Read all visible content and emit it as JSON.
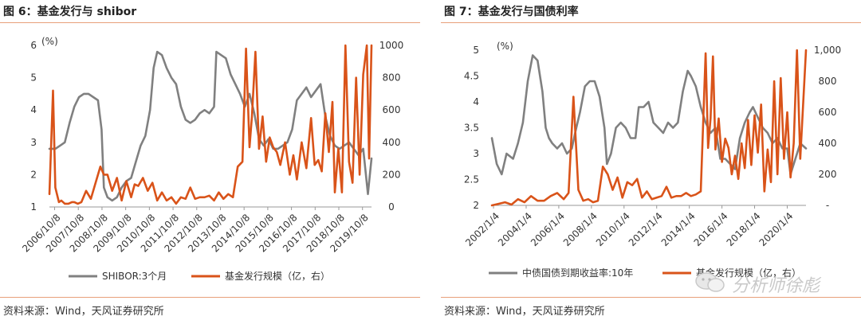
{
  "left": {
    "title": "图 6：基金发行与 shibor",
    "source": "资料来源：Wind，天风证券研究所"
  },
  "right": {
    "title": "图 7：基金发行与国债利率",
    "source": "资料来源：Wind，天风证券研究所"
  },
  "watermark": {
    "text": "分析师徐彪",
    "icon": "wechat-bubble-icon"
  },
  "colors": {
    "grey": "#808080",
    "orange": "#d95319",
    "rule": "#e8a07a"
  },
  "chart_data": [
    {
      "type": "line",
      "unit_label": "(%)",
      "ylim": [
        1,
        6
      ],
      "yticks": [
        "1",
        "2",
        "3",
        "4",
        "5",
        "6"
      ],
      "y2lim": [
        0,
        1000
      ],
      "y2ticks": [
        "0",
        "200",
        "400",
        "600",
        "800",
        "1000"
      ],
      "x_start": 2006.55,
      "x_end": 2020.15,
      "xticks": [
        "2006/10/8",
        "2007/10/8",
        "2008/10/8",
        "2009/10/8",
        "2010/10/8",
        "2011/10/8",
        "2012/10/8",
        "2013/10/8",
        "2014/10/8",
        "2015/10/8",
        "2016/10/8",
        "2017/10/8",
        "2018/10/8",
        "2019/10/8"
      ],
      "xtick_pos": [
        2006.77,
        2007.77,
        2008.77,
        2009.77,
        2010.77,
        2011.77,
        2012.77,
        2013.77,
        2014.77,
        2015.77,
        2016.77,
        2017.77,
        2018.77,
        2019.77
      ],
      "legend": [
        "SHIBOR:3个月",
        "基金发行规模（亿，右）"
      ],
      "series": [
        {
          "name": "SHIBOR:3个月",
          "axis": "left",
          "color": "#808080",
          "x": [
            2006.55,
            2006.8,
            2007.0,
            2007.2,
            2007.4,
            2007.6,
            2007.8,
            2008.0,
            2008.2,
            2008.4,
            2008.6,
            2008.75,
            2008.85,
            2009.0,
            2009.2,
            2009.4,
            2009.6,
            2009.8,
            2010.0,
            2010.2,
            2010.4,
            2010.6,
            2010.8,
            2010.95,
            2011.1,
            2011.3,
            2011.5,
            2011.7,
            2011.9,
            2012.1,
            2012.3,
            2012.5,
            2012.7,
            2012.9,
            2013.1,
            2013.3,
            2013.5,
            2013.6,
            2013.8,
            2014.0,
            2014.2,
            2014.4,
            2014.6,
            2014.8,
            2015.0,
            2015.2,
            2015.4,
            2015.6,
            2015.8,
            2016.0,
            2016.2,
            2016.4,
            2016.6,
            2016.8,
            2017.0,
            2017.2,
            2017.4,
            2017.6,
            2017.8,
            2018.0,
            2018.2,
            2018.4,
            2018.6,
            2018.8,
            2019.0,
            2019.2,
            2019.4,
            2019.6,
            2019.8,
            2020.0,
            2020.15
          ],
          "y": [
            2.8,
            2.8,
            2.9,
            3.0,
            3.6,
            4.1,
            4.4,
            4.5,
            4.5,
            4.4,
            4.3,
            3.4,
            1.6,
            1.3,
            1.2,
            1.3,
            1.6,
            1.8,
            1.9,
            2.4,
            2.9,
            3.2,
            4.0,
            5.3,
            5.8,
            5.7,
            5.3,
            5.0,
            4.8,
            4.1,
            3.7,
            3.6,
            3.7,
            3.9,
            4.0,
            3.9,
            4.1,
            5.8,
            5.7,
            5.6,
            5.1,
            4.8,
            4.5,
            4.1,
            4.5,
            3.9,
            3.1,
            2.9,
            3.1,
            2.8,
            2.8,
            2.9,
            3.0,
            3.4,
            4.3,
            4.5,
            4.7,
            4.4,
            4.6,
            4.8,
            3.8,
            3.2,
            2.9,
            2.8,
            2.9,
            3.0,
            2.8,
            2.6,
            2.8,
            1.4,
            2.5
          ]
        },
        {
          "name": "基金发行规模（亿，右）",
          "axis": "right",
          "color": "#d95319",
          "x": [
            2006.55,
            2006.7,
            2006.8,
            2006.95,
            2007.05,
            2007.2,
            2007.35,
            2007.5,
            2007.6,
            2007.75,
            2007.9,
            2008.1,
            2008.3,
            2008.5,
            2008.7,
            2008.85,
            2009.0,
            2009.2,
            2009.4,
            2009.6,
            2009.8,
            2010.0,
            2010.15,
            2010.3,
            2010.5,
            2010.7,
            2010.9,
            2011.1,
            2011.3,
            2011.5,
            2011.7,
            2011.9,
            2012.1,
            2012.3,
            2012.5,
            2012.7,
            2012.9,
            2013.1,
            2013.3,
            2013.5,
            2013.7,
            2013.9,
            2014.1,
            2014.3,
            2014.5,
            2014.7,
            2014.85,
            2015.0,
            2015.1,
            2015.25,
            2015.4,
            2015.55,
            2015.7,
            2015.85,
            2016.0,
            2016.15,
            2016.3,
            2016.5,
            2016.7,
            2016.85,
            2017.0,
            2017.2,
            2017.4,
            2017.6,
            2017.75,
            2017.9,
            2018.05,
            2018.2,
            2018.35,
            2018.5,
            2018.6,
            2018.75,
            2018.9,
            2019.05,
            2019.2,
            2019.35,
            2019.5,
            2019.65,
            2019.8,
            2019.95,
            2020.05,
            2020.15
          ],
          "y": [
            80,
            720,
            120,
            30,
            40,
            20,
            20,
            30,
            30,
            20,
            30,
            100,
            50,
            150,
            250,
            200,
            200,
            100,
            180,
            40,
            160,
            60,
            140,
            130,
            180,
            100,
            150,
            40,
            90,
            40,
            60,
            20,
            60,
            50,
            120,
            50,
            60,
            60,
            70,
            40,
            90,
            50,
            80,
            60,
            250,
            280,
            980,
            370,
            560,
            960,
            360,
            560,
            280,
            430,
            370,
            340,
            260,
            400,
            200,
            320,
            170,
            400,
            240,
            550,
            260,
            290,
            220,
            580,
            340,
            650,
            90,
            360,
            90,
            1000,
            280,
            150,
            800,
            200,
            820,
            1000,
            300,
            1000
          ]
        }
      ]
    },
    {
      "type": "line",
      "unit_label": "(%)",
      "ylim": [
        2,
        5
      ],
      "yticks": [
        "2",
        "2.5",
        "3",
        "3.5",
        "4",
        "4.5",
        "5"
      ],
      "y2lim": [
        0,
        1000
      ],
      "y2ticks": [
        "-",
        "200",
        "400",
        "600",
        "800",
        "1,000"
      ],
      "x_start": 2001.9,
      "x_end": 2021.15,
      "xticks": [
        "2002/1/4",
        "2004/1/4",
        "2006/1/4",
        "2008/1/4",
        "2010/1/4",
        "2012/1/4",
        "2014/1/4",
        "2016/1/4",
        "2018/1/4",
        "2020/1/4"
      ],
      "xtick_pos": [
        2002.0,
        2004.0,
        2006.0,
        2008.0,
        2010.0,
        2012.0,
        2014.0,
        2016.0,
        2018.0,
        2020.0
      ],
      "legend": [
        "中债国债到期收益率:10年",
        "基金发行规模（亿，右）"
      ],
      "series": [
        {
          "name": "中债国债到期收益率:10年",
          "axis": "left",
          "color": "#808080",
          "x": [
            2001.9,
            2002.2,
            2002.5,
            2002.8,
            2003.2,
            2003.5,
            2003.8,
            2004.1,
            2004.4,
            2004.7,
            2005.0,
            2005.2,
            2005.4,
            2005.6,
            2005.9,
            2006.2,
            2006.5,
            2006.8,
            2007.0,
            2007.3,
            2007.6,
            2007.9,
            2008.2,
            2008.5,
            2008.8,
            2008.95,
            2009.2,
            2009.5,
            2009.8,
            2010.1,
            2010.4,
            2010.7,
            2010.9,
            2011.2,
            2011.5,
            2011.8,
            2012.1,
            2012.4,
            2012.7,
            2013.0,
            2013.3,
            2013.6,
            2013.9,
            2014.1,
            2014.4,
            2014.7,
            2015.0,
            2015.3,
            2015.6,
            2015.9,
            2016.2,
            2016.5,
            2016.8,
            2017.1,
            2017.4,
            2017.7,
            2017.9,
            2018.2,
            2018.5,
            2018.8,
            2019.1,
            2019.4,
            2019.7,
            2020.0,
            2020.2,
            2020.5,
            2020.8,
            2021.15
          ],
          "y": [
            3.3,
            2.8,
            2.6,
            3.0,
            2.9,
            3.2,
            3.6,
            4.4,
            4.9,
            4.8,
            4.2,
            3.5,
            3.3,
            3.2,
            3.1,
            3.2,
            3.0,
            3.1,
            3.4,
            3.8,
            4.3,
            4.4,
            4.4,
            4.1,
            3.5,
            2.8,
            3.0,
            3.5,
            3.6,
            3.5,
            3.3,
            3.3,
            3.9,
            3.9,
            4.0,
            3.6,
            3.5,
            3.4,
            3.6,
            3.5,
            3.6,
            4.2,
            4.6,
            4.5,
            4.3,
            3.9,
            3.6,
            3.4,
            3.5,
            2.9,
            2.9,
            2.8,
            2.7,
            3.3,
            3.6,
            3.8,
            3.9,
            3.7,
            3.5,
            3.4,
            3.2,
            3.3,
            3.1,
            3.1,
            2.6,
            2.9,
            3.2,
            3.1
          ]
        },
        {
          "name": "基金发行规模（亿，右）",
          "axis": "right",
          "color": "#d95319",
          "x": [
            2001.9,
            2002.3,
            2002.7,
            2003.1,
            2003.5,
            2003.9,
            2004.3,
            2004.7,
            2005.1,
            2005.5,
            2005.9,
            2006.3,
            2006.6,
            2006.9,
            2007.2,
            2007.5,
            2007.8,
            2008.1,
            2008.4,
            2008.7,
            2009.0,
            2009.3,
            2009.6,
            2009.9,
            2010.2,
            2010.5,
            2010.8,
            2011.1,
            2011.4,
            2011.7,
            2012.0,
            2012.3,
            2012.6,
            2012.9,
            2013.2,
            2013.5,
            2013.8,
            2014.1,
            2014.4,
            2014.7,
            2015.0,
            2015.15,
            2015.3,
            2015.45,
            2015.6,
            2015.8,
            2016.0,
            2016.2,
            2016.4,
            2016.6,
            2016.8,
            2017.0,
            2017.2,
            2017.4,
            2017.6,
            2017.8,
            2018.0,
            2018.2,
            2018.4,
            2018.6,
            2018.8,
            2019.0,
            2019.2,
            2019.4,
            2019.6,
            2019.8,
            2020.0,
            2020.2,
            2020.4,
            2020.6,
            2020.8,
            2021.15
          ],
          "y": [
            0,
            10,
            20,
            5,
            40,
            20,
            60,
            30,
            30,
            60,
            80,
            40,
            80,
            700,
            100,
            30,
            40,
            20,
            30,
            250,
            200,
            100,
            180,
            50,
            150,
            130,
            170,
            50,
            90,
            40,
            50,
            60,
            120,
            50,
            60,
            60,
            80,
            60,
            70,
            90,
            980,
            370,
            560,
            960,
            360,
            560,
            280,
            430,
            370,
            200,
            320,
            170,
            400,
            240,
            550,
            260,
            580,
            340,
            650,
            90,
            360,
            150,
            800,
            200,
            820,
            300,
            600,
            180,
            400,
            1000,
            300,
            1000
          ]
        }
      ]
    }
  ]
}
